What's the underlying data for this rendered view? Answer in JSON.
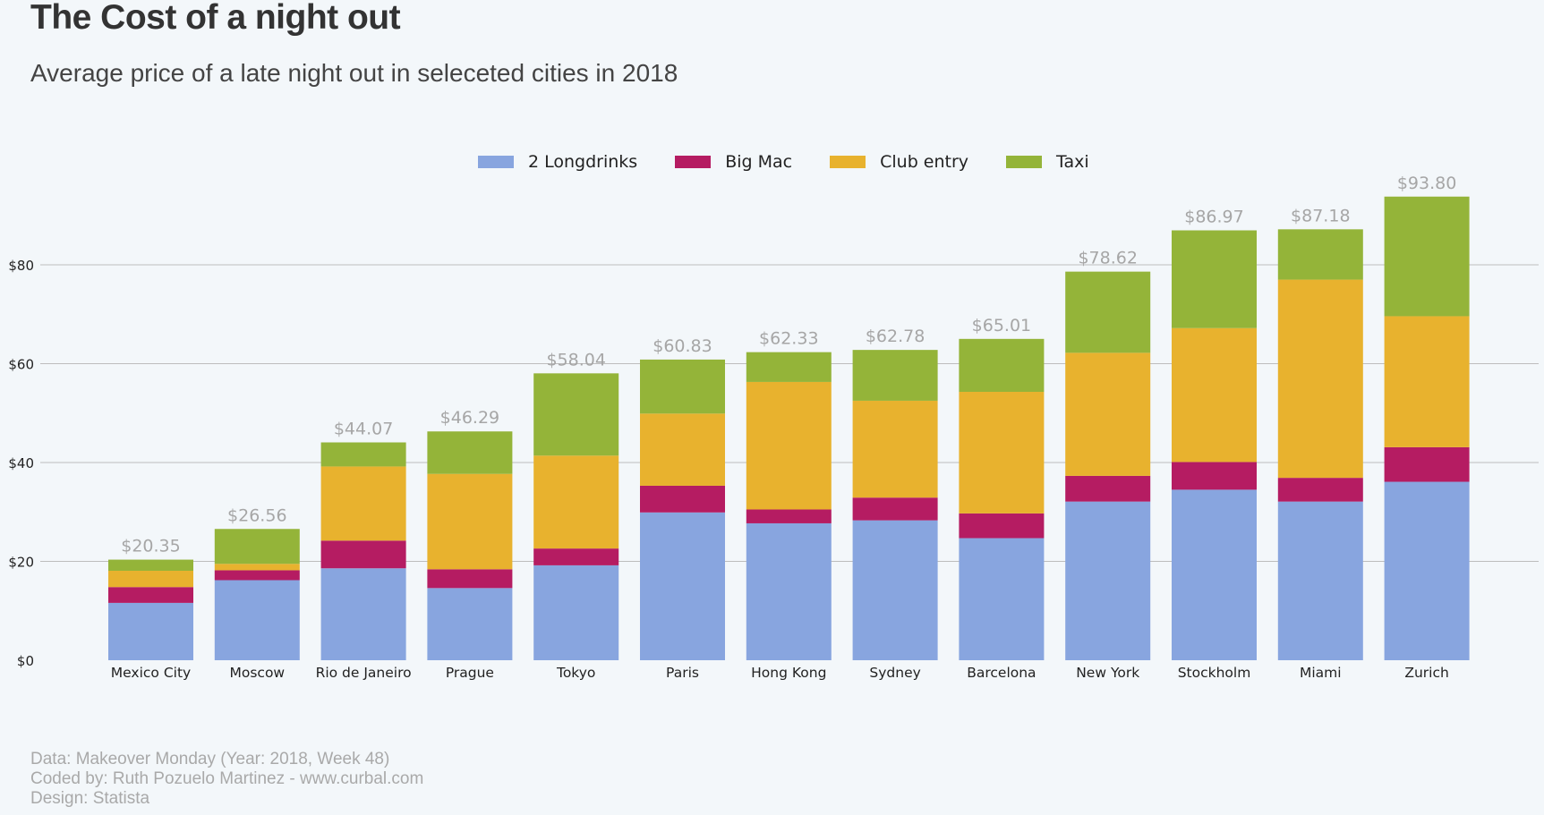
{
  "header": {
    "title": "The Cost of a night out",
    "subtitle": "Average price of a late night out in seleceted cities in 2018"
  },
  "footer": {
    "line1": "Data: Makeover Monday (Year: 2018, Week 48)",
    "line2": "Coded by: Ruth Pozuelo Martinez - www.curbal.com",
    "line3": "Design: Statista"
  },
  "chart_data": {
    "type": "bar",
    "stacked": true,
    "title": "The Cost of a night out",
    "subtitle": "Average price of a late night out in seleceted cities in 2018",
    "xlabel": "",
    "ylabel": "",
    "ylim": [
      0,
      95
    ],
    "yticks": [
      0,
      20,
      40,
      60,
      80
    ],
    "ytick_labels": [
      "$0",
      "$20",
      "$40",
      "$60",
      "$80"
    ],
    "grid": "horizontal",
    "legend_position": "top-center",
    "categories": [
      "Mexico City",
      "Moscow",
      "Rio de Janeiro",
      "Prague",
      "Tokyo",
      "Paris",
      "Hong Kong",
      "Sydney",
      "Barcelona",
      "New York",
      "Stockholm",
      "Miami",
      "Zurich"
    ],
    "series": [
      {
        "name": "2 Longdrinks",
        "color": "#88A5DF",
        "values": [
          11.6,
          16.2,
          18.6,
          14.6,
          19.2,
          29.9,
          27.7,
          28.3,
          24.7,
          32.1,
          34.5,
          32.1,
          36.1
        ]
      },
      {
        "name": "Big Mac",
        "color": "#B51C62",
        "values": [
          3.2,
          2.0,
          5.6,
          3.8,
          3.4,
          5.4,
          2.8,
          4.6,
          5.0,
          5.2,
          5.6,
          4.8,
          7.0
        ]
      },
      {
        "name": "Club entry",
        "color": "#E8B22E",
        "values": [
          3.3,
          1.3,
          15.0,
          19.3,
          18.8,
          14.6,
          25.8,
          19.6,
          24.6,
          24.9,
          27.1,
          40.1,
          26.5
        ]
      },
      {
        "name": "Taxi",
        "color": "#94B439",
        "values": [
          2.25,
          7.06,
          4.87,
          8.59,
          16.64,
          10.93,
          6.03,
          10.28,
          10.71,
          16.42,
          19.77,
          10.18,
          24.2
        ]
      }
    ],
    "totals": [
      20.35,
      26.56,
      44.07,
      46.29,
      58.04,
      60.83,
      62.33,
      62.78,
      65.01,
      78.62,
      86.97,
      87.18,
      93.8
    ],
    "total_labels": [
      "$20.35",
      "$26.56",
      "$44.07",
      "$46.29",
      "$58.04",
      "$60.83",
      "$62.33",
      "$62.78",
      "$65.01",
      "$78.62",
      "$86.97",
      "$87.18",
      "$93.80"
    ]
  }
}
